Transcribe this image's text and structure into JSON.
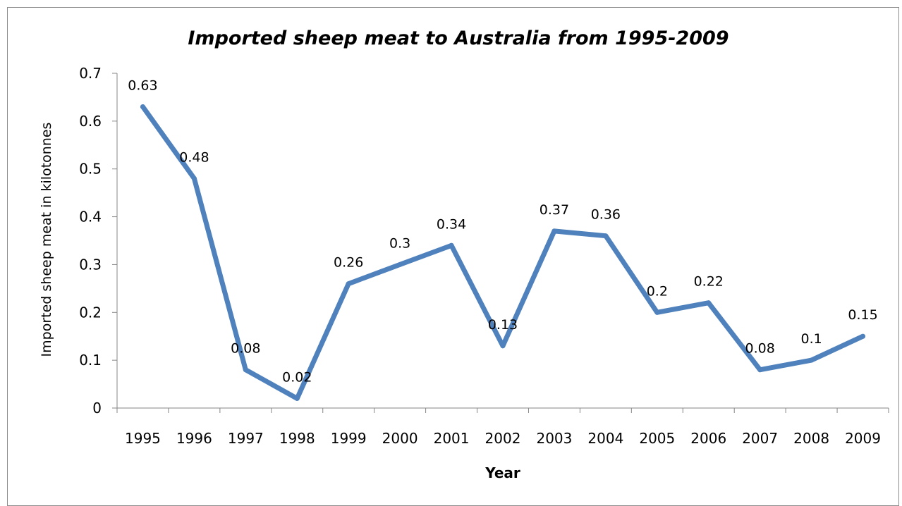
{
  "chart_data": {
    "type": "line",
    "title": "Imported sheep meat to Australia from 1995-2009",
    "xlabel": "Year",
    "ylabel": "Imported sheep meat in kilotonnes",
    "categories": [
      "1995",
      "1996",
      "1997",
      "1998",
      "1999",
      "2000",
      "2001",
      "2002",
      "2003",
      "2004",
      "2005",
      "2006",
      "2007",
      "2008",
      "2009"
    ],
    "series": [
      {
        "values": [
          0.63,
          0.48,
          0.08,
          0.02,
          0.26,
          0.3,
          0.34,
          0.13,
          0.37,
          0.36,
          0.2,
          0.22,
          0.08,
          0.1,
          0.15
        ],
        "color": "#4f81bd"
      }
    ],
    "data_labels": [
      "0.63",
      "0.48",
      "0.08",
      "0.02",
      "0.26",
      "0.3",
      "0.34",
      "0.13",
      "0.37",
      "0.36",
      "0.2",
      "0.22",
      "0.08",
      "0.1",
      "0.15"
    ],
    "yticks": [
      "0",
      "0.1",
      "0.2",
      "0.3",
      "0.4",
      "0.5",
      "0.6",
      "0.7"
    ],
    "ylim": [
      0,
      0.7
    ],
    "grid": false,
    "legend": "none"
  }
}
